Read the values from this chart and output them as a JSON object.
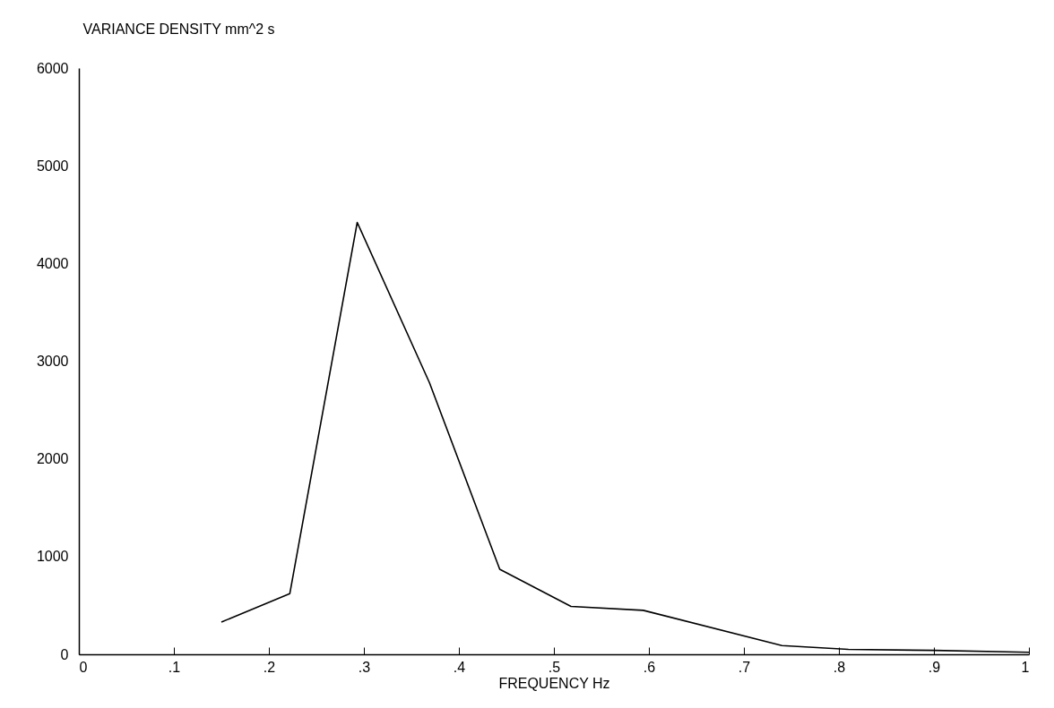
{
  "chart_data": {
    "type": "line",
    "xlabel": "FREQUENCY  Hz",
    "ylabel": "VARIANCE DENSITY  mm^2 s",
    "x": [
      0.15,
      0.222,
      0.293,
      0.369,
      0.443,
      0.518,
      0.594,
      0.74,
      0.81,
      0.9,
      1.0
    ],
    "series": [
      {
        "color": "#000000",
        "values": [
          330,
          620,
          4420,
          2780,
          870,
          490,
          450,
          90,
          50,
          40,
          20
        ]
      }
    ],
    "xlim": [
      0,
      1
    ],
    "xticks": [
      0,
      {
        "value": 0.1,
        "label": ".1"
      },
      {
        "value": 0.2,
        "label": ".2"
      },
      {
        "value": 0.3,
        "label": ".3"
      },
      {
        "value": 0.4,
        "label": ".4"
      },
      {
        "value": 0.5,
        "label": ".5"
      },
      {
        "value": 0.6,
        "label": ".6"
      },
      {
        "value": 0.7,
        "label": ".7"
      },
      {
        "value": 0.8,
        "label": ".8"
      },
      {
        "value": 0.9,
        "label": ".9"
      },
      1
    ],
    "ylim": [
      0,
      6000
    ],
    "yticks": [
      0,
      1000,
      2000,
      3000,
      4000,
      5000,
      6000
    ],
    "grid": false,
    "marker": "none",
    "line_style": "solid"
  }
}
